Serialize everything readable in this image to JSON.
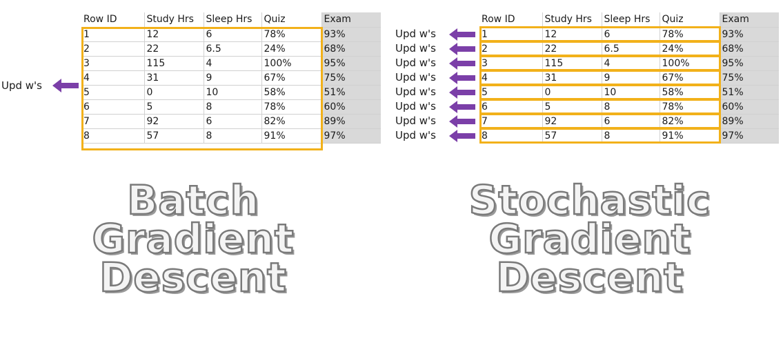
{
  "table": {
    "headers": [
      "Row ID",
      "Study Hrs",
      "Sleep Hrs",
      "Quiz",
      "Exam"
    ],
    "rows": [
      [
        "1",
        "12",
        "6",
        "78%",
        "93%"
      ],
      [
        "2",
        "22",
        "6.5",
        "24%",
        "68%"
      ],
      [
        "3",
        "115",
        "4",
        "100%",
        "95%"
      ],
      [
        "4",
        "31",
        "9",
        "67%",
        "75%"
      ],
      [
        "5",
        "0",
        "10",
        "58%",
        "51%"
      ],
      [
        "6",
        "5",
        "8",
        "78%",
        "60%"
      ],
      [
        "7",
        "92",
        "6",
        "82%",
        "89%"
      ],
      [
        "8",
        "57",
        "8",
        "91%",
        "97%"
      ]
    ]
  },
  "update_label": "Upd w's",
  "batch": {
    "title_lines": [
      "Batch",
      "Gradient",
      "Descent"
    ]
  },
  "sgd": {
    "title_lines": [
      "Stochastic",
      "Gradient",
      "Descent"
    ]
  },
  "colors": {
    "highlight": "#f2b11a",
    "arrow": "#7b3fa8",
    "exam_column_bg": "#d9d9d9"
  }
}
